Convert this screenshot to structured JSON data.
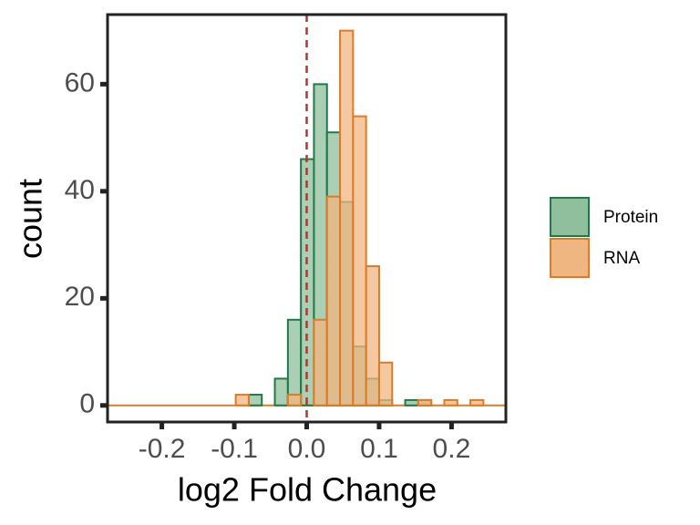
{
  "chart_data": {
    "type": "histogram",
    "x_label": "log2 Fold Change",
    "y_label": "count",
    "bins": [
      -0.098,
      -0.08,
      -0.062,
      -0.044,
      -0.026,
      -0.008,
      0.01,
      0.028,
      0.046,
      0.064,
      0.082,
      0.1,
      0.118,
      0.136,
      0.154,
      0.172,
      0.19,
      0.208,
      0.226,
      0.244
    ],
    "series": [
      {
        "name": "Protein",
        "color": "#1e7b45",
        "fill": "#8fbf9c",
        "values": [
          0,
          2,
          0,
          5,
          16,
          46,
          60,
          51,
          38,
          11,
          5,
          1,
          0,
          1,
          1,
          0,
          0,
          0,
          0
        ]
      },
      {
        "name": "RNA",
        "color": "#e07b24",
        "fill": "#f0b682",
        "values": [
          2,
          0,
          0,
          0,
          2,
          0,
          16,
          39,
          70,
          54,
          26,
          8,
          0,
          0,
          1,
          0,
          1,
          0,
          1
        ]
      }
    ],
    "vline": {
      "x": 0,
      "color": "#b5372b"
    },
    "xlim": [
      -0.275,
      0.275
    ],
    "xticks": [
      -0.2,
      -0.1,
      {
        "value": 0,
        "label": "0.0"
      },
      0.1,
      0.2
    ],
    "ylim": [
      -3.1,
      73
    ],
    "yticks": [
      0,
      20,
      40,
      60
    ],
    "legend": "right"
  }
}
